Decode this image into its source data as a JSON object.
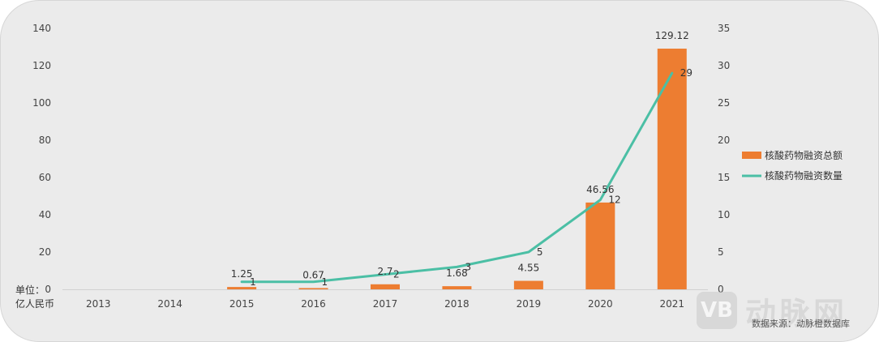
{
  "chart_data": {
    "type": "bar+line",
    "categories": [
      "2013",
      "2014",
      "2015",
      "2016",
      "2017",
      "2018",
      "2019",
      "2020",
      "2021"
    ],
    "series": [
      {
        "name": "核酸药物融资总额",
        "type": "bar",
        "axis": "left",
        "color": "#ed7d31",
        "values": [
          0,
          0,
          1.25,
          0.67,
          2.7,
          1.68,
          4.55,
          46.56,
          129.12
        ],
        "labels": [
          null,
          null,
          "1.25",
          "0.67",
          "2.7",
          "1.68",
          "4.55",
          "46.56",
          "129.12"
        ]
      },
      {
        "name": "核酸药物融资数量",
        "type": "line",
        "axis": "right",
        "color": "#4bbfa5",
        "values": [
          null,
          null,
          1,
          1,
          2,
          3,
          5,
          12,
          29
        ],
        "labels": [
          null,
          null,
          "1",
          "1",
          "2",
          "3",
          "5",
          "12",
          "29"
        ]
      }
    ],
    "y_left": {
      "min": 0,
      "max": 140,
      "ticks": [
        "0",
        "20",
        "40",
        "60",
        "80",
        "100",
        "120",
        "140"
      ]
    },
    "y_right": {
      "min": 0,
      "max": 35,
      "ticks": [
        "0",
        "5",
        "10",
        "15",
        "20",
        "25",
        "30",
        "35"
      ]
    },
    "unit_label_line1": "单位：",
    "unit_label_line2": "亿人民币",
    "legend_position": "right",
    "grid": false
  },
  "source_text": "数据来源：动脉橙数据库",
  "watermark": {
    "logo_text": "VB",
    "brand_text": "动脉网"
  }
}
